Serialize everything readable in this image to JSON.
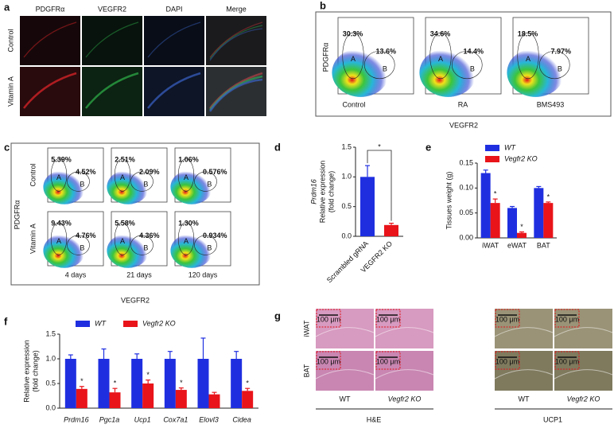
{
  "panel_labels": [
    "a",
    "b",
    "c",
    "d",
    "e",
    "f",
    "g"
  ],
  "microscopy_a": {
    "channels": [
      {
        "name": "PDGFRα",
        "color": "#e8262a"
      },
      {
        "name": "VEGFR2",
        "color": "#2fb34a"
      },
      {
        "name": "DAPI",
        "color": "#3a63c8"
      },
      {
        "name": "Merge",
        "color": "#222222"
      }
    ],
    "rows": [
      "Control",
      "Vitamin A"
    ]
  },
  "flow_b": {
    "x_label": "VEGFR2",
    "y_label": "PDGFRα",
    "gates": [
      "A",
      "B"
    ],
    "plots": [
      {
        "name": "Control",
        "gate_a": "30.3%",
        "gate_b": "13.6%"
      },
      {
        "name": "RA",
        "gate_a": "34.6%",
        "gate_b": "14.4%"
      },
      {
        "name": "BMS493",
        "gate_a": "18.5%",
        "gate_b": "7.97%"
      }
    ]
  },
  "flow_c": {
    "x_label": "VEGFR2",
    "y_label": "PDGFRα",
    "gates": [
      "A",
      "B"
    ],
    "rows": [
      "Control",
      "Vitamin A"
    ],
    "columns": [
      "4 days",
      "21 days",
      "120 days"
    ],
    "gate_labels": [
      [
        [
          "5.39%",
          "4.52%"
        ],
        [
          "2.51%",
          "2.09%"
        ],
        [
          "1.06%",
          "0.576%"
        ]
      ],
      [
        [
          "9.43%",
          "4.76%"
        ],
        [
          "5.58%",
          "4.36%"
        ],
        [
          "1.30%",
          "0.934%"
        ]
      ]
    ]
  },
  "histology_g": {
    "rows": [
      "iWAT",
      "BAT"
    ],
    "genotypes": [
      "WT",
      "Vegfr2 KO"
    ],
    "stains": [
      "H&E",
      "UCP1"
    ],
    "scale_bar": "100 μm"
  },
  "chart_data": [
    {
      "type": "bar",
      "y_label_lines": [
        "Prdm16",
        "Relative expression",
        "(fold change)"
      ],
      "categories": [
        "Scrambled gRNA",
        "VEGFR2 KO"
      ],
      "values": [
        1.0,
        0.19
      ],
      "errors": [
        0.19,
        0.03
      ],
      "colors": [
        "#1f2fe0",
        "#e8141a"
      ],
      "significance": "*",
      "ylim": [
        0,
        1.5
      ],
      "yticks": [
        {
          "value": 0,
          "label": "0.0"
        },
        0.5,
        {
          "value": 1,
          "label": "1.0"
        },
        1.5
      ]
    },
    {
      "type": "bar",
      "y_label": "Tissues weight (g)",
      "categories": [
        "iWAT",
        "eWAT",
        "BAT"
      ],
      "series": [
        {
          "name": "WT",
          "color": "#1f2fe0",
          "values": [
            0.13,
            0.06,
            0.1
          ],
          "errors": [
            0.006,
            0.003,
            0.003
          ]
        },
        {
          "name": "Vegfr2 KO",
          "color": "#e8141a",
          "values": [
            0.07,
            0.01,
            0.07
          ],
          "errors": [
            0.008,
            0.002,
            0.002
          ],
          "significance": [
            "*",
            "*",
            "*"
          ]
        }
      ],
      "ylim": [
        0,
        0.15
      ],
      "yticks": [
        {
          "value": 0,
          "label": "0.00"
        },
        0.05,
        {
          "value": 0.1,
          "label": "0.10"
        },
        0.15
      ]
    },
    {
      "type": "bar",
      "y_label_lines": [
        "Relative expression",
        "(fold change)"
      ],
      "categories": [
        "Prdm16",
        "Pgc1a",
        "Ucp1",
        "Cox7a1",
        "Elovl3",
        "Cidea"
      ],
      "series": [
        {
          "name": "WT",
          "color": "#1f2fe0",
          "values": [
            1.0,
            1.0,
            1.0,
            1.0,
            1.0,
            1.0
          ],
          "errors": [
            0.08,
            0.2,
            0.1,
            0.15,
            0.42,
            0.15
          ]
        },
        {
          "name": "Vegfr2 KO",
          "color": "#e8141a",
          "values": [
            0.39,
            0.32,
            0.5,
            0.37,
            0.28,
            0.35
          ],
          "errors": [
            0.05,
            0.08,
            0.07,
            0.04,
            0.04,
            0.05
          ],
          "significance": [
            "*",
            "*",
            "*",
            "*",
            null,
            "*"
          ]
        }
      ],
      "ylim": [
        0,
        1.5
      ],
      "yticks": [
        {
          "value": 0,
          "label": "0.0"
        },
        0.5,
        {
          "value": 1,
          "label": "1.0"
        },
        1.5
      ]
    }
  ]
}
